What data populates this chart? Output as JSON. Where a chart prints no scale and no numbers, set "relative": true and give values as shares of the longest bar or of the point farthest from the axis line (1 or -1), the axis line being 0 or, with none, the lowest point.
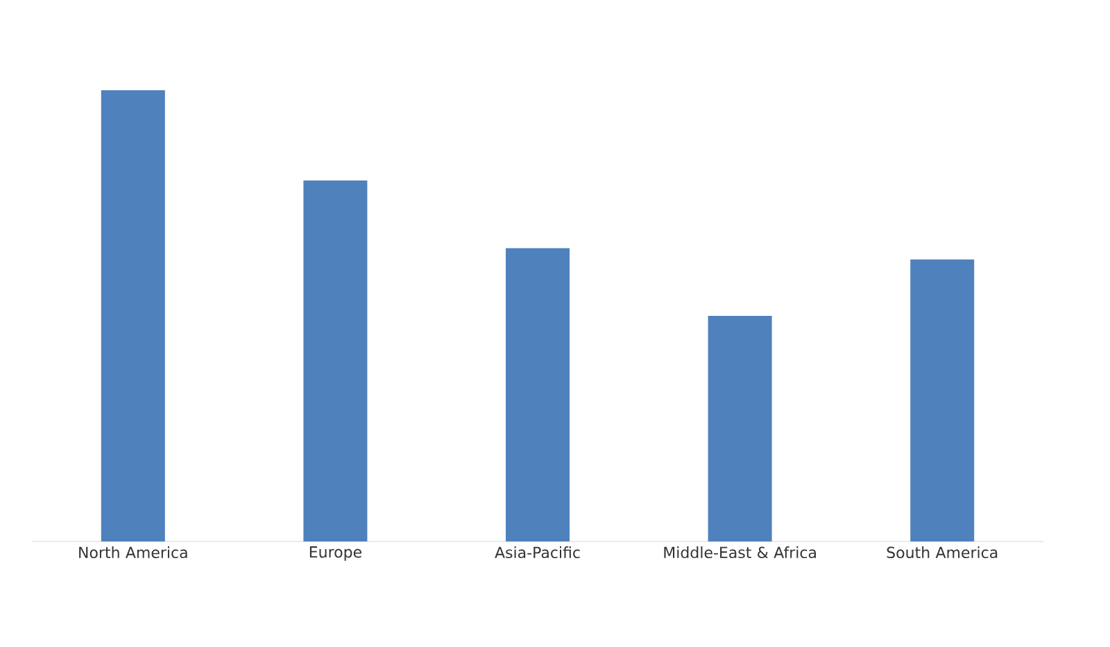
{
  "chart_data": {
    "type": "bar",
    "relative": true,
    "categories": [
      "North America",
      "Europe",
      "Asia-Pacific",
      "Middle-East & Africa",
      "South America"
    ],
    "values": [
      1,
      0.8,
      0.65,
      0.5,
      0.625
    ],
    "color": "#4f81bd"
  }
}
